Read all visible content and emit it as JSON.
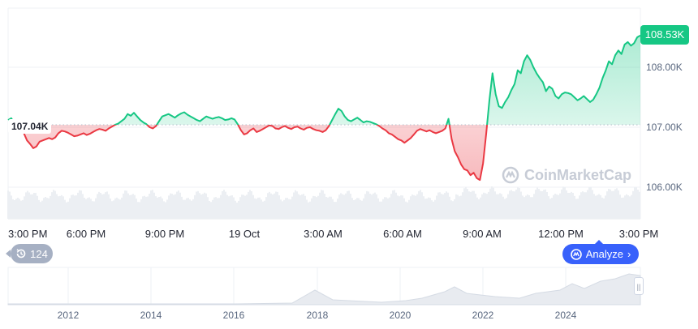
{
  "chart_data": {
    "type": "area",
    "reference_value": 107.04,
    "current_value": 108.53,
    "ylim": [
      105.6,
      108.9
    ],
    "y_ticks": [
      106.0,
      107.0,
      108.0
    ],
    "y_tick_labels": [
      "106.00K",
      "107.00K",
      "108.00K"
    ],
    "x_tick_labels": [
      "3:00 PM",
      "6:00 PM",
      "9:00 PM",
      "19 Oct",
      "3:00 AM",
      "6:00 AM",
      "9:00 AM",
      "12:00 PM",
      "3:00 PM"
    ],
    "reference_label": "107.04K",
    "current_label": "108.53K",
    "grid": true,
    "values": [
      107.12,
      107.15,
      107.06,
      107.04,
      106.95,
      106.9,
      106.78,
      106.72,
      106.65,
      106.68,
      106.76,
      106.78,
      106.8,
      106.82,
      106.8,
      106.83,
      106.9,
      106.94,
      106.93,
      106.91,
      106.88,
      106.85,
      106.86,
      106.88,
      106.9,
      106.87,
      106.89,
      106.92,
      106.95,
      106.97,
      106.96,
      106.94,
      106.98,
      107.01,
      107.04,
      107.06,
      107.1,
      107.14,
      107.22,
      107.19,
      107.24,
      107.18,
      107.12,
      107.08,
      107.05,
      107.0,
      106.98,
      107.02,
      107.1,
      107.18,
      107.2,
      107.22,
      107.19,
      107.16,
      107.2,
      107.23,
      107.25,
      107.21,
      107.18,
      107.15,
      107.12,
      107.1,
      107.14,
      107.18,
      107.16,
      107.14,
      107.16,
      107.17,
      107.15,
      107.12,
      107.13,
      107.15,
      107.13,
      107.05,
      106.95,
      106.88,
      106.9,
      106.95,
      106.98,
      106.92,
      106.94,
      106.97,
      107.0,
      107.03,
      107.02,
      106.98,
      106.97,
      107.0,
      107.02,
      106.99,
      106.97,
      107.0,
      107.01,
      106.98,
      106.96,
      106.99,
      107.0,
      106.97,
      106.95,
      106.94,
      106.92,
      106.95,
      107.02,
      107.12,
      107.22,
      107.31,
      107.27,
      107.18,
      107.12,
      107.1,
      107.13,
      107.16,
      107.12,
      107.08,
      107.1,
      107.09,
      107.07,
      107.05,
      107.02,
      106.98,
      106.95,
      106.9,
      106.88,
      106.84,
      106.8,
      106.78,
      106.74,
      106.78,
      106.82,
      106.88,
      106.94,
      106.97,
      106.95,
      106.93,
      106.95,
      106.92,
      106.9,
      106.92,
      106.94,
      106.98,
      107.14,
      106.8,
      106.6,
      106.5,
      106.38,
      106.3,
      106.28,
      106.2,
      106.24,
      106.15,
      106.12,
      106.4,
      106.9,
      107.45,
      107.9,
      107.55,
      107.35,
      107.32,
      107.42,
      107.5,
      107.62,
      107.72,
      107.95,
      107.9,
      108.1,
      108.2,
      108.12,
      108.0,
      107.9,
      107.82,
      107.75,
      107.6,
      107.68,
      107.64,
      107.52,
      107.48,
      107.55,
      107.58,
      107.57,
      107.55,
      107.5,
      107.45,
      107.48,
      107.52,
      107.47,
      107.42,
      107.46,
      107.55,
      107.66,
      107.82,
      107.95,
      108.1,
      108.05,
      108.2,
      108.28,
      108.22,
      108.38,
      108.42,
      108.36,
      108.4,
      108.5,
      108.53
    ],
    "history_years": [
      "2012",
      "2014",
      "2016",
      "2018",
      "2020",
      "2022",
      "2024"
    ]
  },
  "ui": {
    "history_label": "124",
    "analyze_label": "Analyze",
    "watermark_text": "CoinMarketCap",
    "colors": {
      "up": "#16c784",
      "down": "#ea3943",
      "accent": "#3861fb",
      "grid": "#eff2f5",
      "text": "#222531"
    }
  }
}
